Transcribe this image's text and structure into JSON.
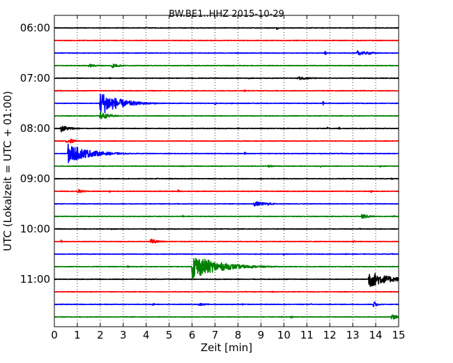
{
  "chart_data": {
    "type": "line",
    "title": "BW.BE1..HHZ 2015-10-29",
    "xlabel": "Zeit  [min]",
    "ylabel": "UTC (Lokalzeit = UTC + 01:00)",
    "xlim": [
      0,
      15
    ],
    "x_ticks": [
      "0",
      "1",
      "2",
      "3",
      "4",
      "5",
      "6",
      "7",
      "8",
      "9",
      "10",
      "11",
      "12",
      "13",
      "14",
      "15"
    ],
    "y_tick_labels": [
      "06:00",
      "07:00",
      "08:00",
      "09:00",
      "10:00",
      "11:00"
    ],
    "trace_interval_min": 15,
    "trace_count": 24,
    "start_time": "06:00",
    "colors": [
      "#000000",
      "#ff0000",
      "#0000ff",
      "#008000"
    ],
    "grid": "vertical-dotted",
    "series": [
      {
        "start": "06:00",
        "color": "#000000",
        "events": [
          {
            "t": 9.7,
            "amp": 0.4,
            "dur": 0.05
          },
          {
            "t": 4.0,
            "amp": 0.15,
            "dur": 0.05
          }
        ]
      },
      {
        "start": "06:15",
        "color": "#ff0000",
        "events": [
          {
            "t": 7.0,
            "amp": 0.12,
            "dur": 0.05
          },
          {
            "t": 13.5,
            "amp": 0.12,
            "dur": 0.05
          }
        ]
      },
      {
        "start": "06:30",
        "color": "#0000ff",
        "events": [
          {
            "t": 11.8,
            "amp": 1.0,
            "dur": 0.03
          },
          {
            "t": 13.2,
            "amp": 0.5,
            "dur": 0.5
          },
          {
            "t": 13.7,
            "amp": 0.3,
            "dur": 0.3
          }
        ]
      },
      {
        "start": "06:45",
        "color": "#008000",
        "events": [
          {
            "t": 1.5,
            "amp": 0.35,
            "dur": 0.4
          },
          {
            "t": 2.5,
            "amp": 0.5,
            "dur": 0.35
          }
        ]
      },
      {
        "start": "07:00",
        "color": "#000000",
        "events": [
          {
            "t": 10.6,
            "amp": 0.35,
            "dur": 0.6
          },
          {
            "t": 2.4,
            "amp": 0.2,
            "dur": 0.05
          },
          {
            "t": 8.5,
            "amp": 0.15,
            "dur": 0.05
          }
        ]
      },
      {
        "start": "07:15",
        "color": "#ff0000",
        "events": [
          {
            "t": 8.3,
            "amp": 0.35,
            "dur": 0.05
          },
          {
            "t": 4.8,
            "amp": 0.15,
            "dur": 0.05
          },
          {
            "t": 13.5,
            "amp": 0.15,
            "dur": 0.05
          }
        ]
      },
      {
        "start": "07:30",
        "color": "#0000ff",
        "events": [
          {
            "t": 2.0,
            "amp": 2.5,
            "dur": 0.8
          },
          {
            "t": 11.7,
            "amp": 1.0,
            "dur": 0.03
          },
          {
            "t": 7.0,
            "amp": 0.35,
            "dur": 0.05
          },
          {
            "t": 7.7,
            "amp": 0.25,
            "dur": 0.05
          }
        ]
      },
      {
        "start": "07:45",
        "color": "#008000",
        "events": [
          {
            "t": 2.0,
            "amp": 0.8,
            "dur": 0.4
          },
          {
            "t": 13.0,
            "amp": 0.15,
            "dur": 0.05
          }
        ]
      },
      {
        "start": "08:00",
        "color": "#000000",
        "events": [
          {
            "t": 0.3,
            "amp": 0.7,
            "dur": 0.4
          },
          {
            "t": 11.9,
            "amp": 0.3,
            "dur": 0.05
          },
          {
            "t": 12.4,
            "amp": 0.35,
            "dur": 0.05
          },
          {
            "t": 8.0,
            "amp": 0.2,
            "dur": 0.05
          }
        ]
      },
      {
        "start": "08:15",
        "color": "#ff0000",
        "events": [
          {
            "t": 0.5,
            "amp": 0.5,
            "dur": 0.1
          },
          {
            "t": 0.7,
            "amp": 0.5,
            "dur": 0.2
          },
          {
            "t": 8.8,
            "amp": 0.15,
            "dur": 0.05
          },
          {
            "t": 14.0,
            "amp": 0.15,
            "dur": 0.05
          }
        ]
      },
      {
        "start": "08:30",
        "color": "#0000ff",
        "events": [
          {
            "t": 0.6,
            "amp": 2.0,
            "dur": 0.9
          },
          {
            "t": 8.3,
            "amp": 0.6,
            "dur": 0.05
          },
          {
            "t": 12.5,
            "amp": 0.15,
            "dur": 0.05
          }
        ]
      },
      {
        "start": "08:45",
        "color": "#008000",
        "events": [
          {
            "t": 5.6,
            "amp": 0.3,
            "dur": 0.05
          },
          {
            "t": 9.3,
            "amp": 0.3,
            "dur": 0.2
          },
          {
            "t": 11.6,
            "amp": 0.3,
            "dur": 0.05
          },
          {
            "t": 14.2,
            "amp": 0.25,
            "dur": 0.05
          }
        ]
      },
      {
        "start": "09:00",
        "color": "#000000",
        "events": [
          {
            "t": 4.5,
            "amp": 0.2,
            "dur": 0.05
          },
          {
            "t": 9.0,
            "amp": 0.2,
            "dur": 0.05
          },
          {
            "t": 14.7,
            "amp": 0.2,
            "dur": 0.05
          }
        ]
      },
      {
        "start": "09:15",
        "color": "#ff0000",
        "events": [
          {
            "t": 1.0,
            "amp": 0.45,
            "dur": 0.3
          },
          {
            "t": 2.4,
            "amp": 0.3,
            "dur": 0.05
          },
          {
            "t": 5.4,
            "amp": 0.35,
            "dur": 0.05
          },
          {
            "t": 13.8,
            "amp": 0.3,
            "dur": 0.05
          }
        ]
      },
      {
        "start": "09:30",
        "color": "#0000ff",
        "events": [
          {
            "t": 8.7,
            "amp": 0.5,
            "dur": 0.6
          },
          {
            "t": 9.3,
            "amp": 0.3,
            "dur": 0.3
          }
        ]
      },
      {
        "start": "09:45",
        "color": "#008000",
        "events": [
          {
            "t": 13.4,
            "amp": 0.6,
            "dur": 0.3
          },
          {
            "t": 5.6,
            "amp": 0.25,
            "dur": 0.05
          },
          {
            "t": 14.8,
            "amp": 0.25,
            "dur": 0.05
          }
        ]
      },
      {
        "start": "10:00",
        "color": "#000000",
        "events": [
          {
            "t": 13.3,
            "amp": 0.2,
            "dur": 0.05
          },
          {
            "t": 2.5,
            "amp": 0.15,
            "dur": 0.05
          },
          {
            "t": 4.4,
            "amp": 0.15,
            "dur": 0.05
          }
        ]
      },
      {
        "start": "10:15",
        "color": "#ff0000",
        "events": [
          {
            "t": 4.2,
            "amp": 0.6,
            "dur": 0.3
          },
          {
            "t": 0.3,
            "amp": 0.3,
            "dur": 0.05
          },
          {
            "t": 13.0,
            "amp": 0.3,
            "dur": 0.1
          },
          {
            "t": 8.8,
            "amp": 0.15,
            "dur": 0.05
          }
        ]
      },
      {
        "start": "10:30",
        "color": "#0000ff",
        "events": [
          {
            "t": 14.7,
            "amp": 0.35,
            "dur": 0.05
          },
          {
            "t": 10.0,
            "amp": 0.2,
            "dur": 0.05
          },
          {
            "t": 12.7,
            "amp": 0.15,
            "dur": 0.05
          }
        ]
      },
      {
        "start": "10:45",
        "color": "#008000",
        "events": [
          {
            "t": 6.0,
            "amp": 2.6,
            "dur": 1.1
          },
          {
            "t": 3.2,
            "amp": 0.3,
            "dur": 0.05
          },
          {
            "t": 1.6,
            "amp": 0.15,
            "dur": 0.05
          }
        ]
      },
      {
        "start": "11:00",
        "color": "#000000",
        "events": [
          {
            "t": 13.7,
            "amp": 1.8,
            "dur": 0.8
          }
        ]
      },
      {
        "start": "11:15",
        "color": "#ff0000",
        "events": [
          {
            "t": 9.5,
            "amp": 0.15,
            "dur": 0.05
          },
          {
            "t": 3.5,
            "amp": 0.1,
            "dur": 0.05
          }
        ]
      },
      {
        "start": "11:30",
        "color": "#0000ff",
        "events": [
          {
            "t": 13.9,
            "amp": 0.8,
            "dur": 0.15
          },
          {
            "t": 4.3,
            "amp": 0.4,
            "dur": 0.05
          },
          {
            "t": 6.3,
            "amp": 0.3,
            "dur": 0.3
          },
          {
            "t": 8.2,
            "amp": 0.2,
            "dur": 0.05
          },
          {
            "t": 11.2,
            "amp": 0.2,
            "dur": 0.05
          }
        ]
      },
      {
        "start": "11:45",
        "color": "#008000",
        "events": [
          {
            "t": 14.7,
            "amp": 0.6,
            "dur": 0.3
          },
          {
            "t": 10.3,
            "amp": 0.3,
            "dur": 0.1
          },
          {
            "t": 9.9,
            "amp": 0.15,
            "dur": 0.05
          }
        ]
      }
    ]
  }
}
